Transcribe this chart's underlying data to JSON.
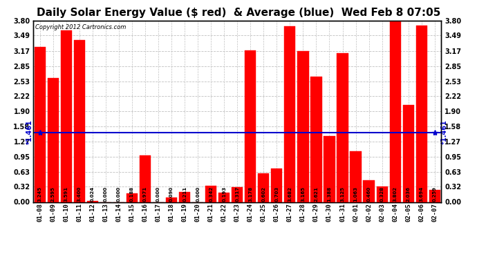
{
  "title": "Daily Solar Energy Value ($ red)  & Average (blue)  Wed Feb 8 07:05",
  "copyright": "Copyright 2012 Cartronics.com",
  "average": 1.461,
  "categories": [
    "01-08",
    "01-09",
    "01-10",
    "01-11",
    "01-12",
    "01-13",
    "01-14",
    "01-15",
    "01-16",
    "01-17",
    "01-18",
    "01-19",
    "01-20",
    "01-21",
    "01-22",
    "01-23",
    "01-24",
    "01-25",
    "01-26",
    "01-27",
    "01-28",
    "01-29",
    "01-30",
    "01-31",
    "02-01",
    "02-02",
    "02-03",
    "02-04",
    "02-05",
    "02-06",
    "02-07"
  ],
  "values": [
    3.245,
    2.595,
    3.591,
    3.4,
    0.024,
    0.0,
    0.0,
    0.188,
    0.971,
    0.0,
    0.09,
    0.211,
    0.0,
    0.342,
    0.193,
    0.317,
    3.178,
    0.602,
    0.703,
    3.682,
    3.165,
    2.621,
    1.388,
    3.125,
    1.063,
    0.46,
    0.328,
    3.802,
    2.036,
    3.694,
    0.259
  ],
  "bar_color": "#ff0000",
  "avg_line_color": "#0000cd",
  "bg_color": "#ffffff",
  "plot_bg_color": "#ffffff",
  "grid_color": "#c0c0c0",
  "ylim": [
    0.0,
    3.8
  ],
  "yticks": [
    0.0,
    0.32,
    0.63,
    0.95,
    1.27,
    1.58,
    1.9,
    2.22,
    2.53,
    2.85,
    3.17,
    3.49,
    3.8
  ],
  "title_fontsize": 11,
  "bar_edge_color": "#ff0000",
  "avg_value": 1.461
}
